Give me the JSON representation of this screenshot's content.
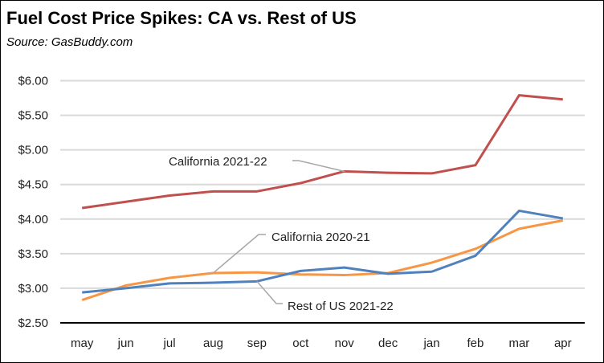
{
  "chart_data": {
    "type": "line",
    "title": "Fuel Cost Price Spikes:  CA vs. Rest of US",
    "subtitle": "Source:  GasBuddy.com",
    "xlabel": "",
    "ylabel": "",
    "categories": [
      "may",
      "jun",
      "jul",
      "aug",
      "sep",
      "oct",
      "nov",
      "dec",
      "jan",
      "feb",
      "mar",
      "apr"
    ],
    "ylim": [
      2.5,
      6.0
    ],
    "yticks": [
      2.5,
      3.0,
      3.5,
      4.0,
      4.5,
      5.0,
      5.5,
      6.0
    ],
    "ytick_labels": [
      "$2.50",
      "$3.00",
      "$3.50",
      "$4.00",
      "$4.50",
      "$5.00",
      "$5.50",
      "$6.00"
    ],
    "grid": true,
    "legend": "none (inline annotations)",
    "series": [
      {
        "name": "California 2021-22",
        "color": "#c0504d",
        "values": [
          4.16,
          4.25,
          4.34,
          4.4,
          4.4,
          4.52,
          4.69,
          4.67,
          4.66,
          4.78,
          5.79,
          5.73
        ]
      },
      {
        "name": "Rest of US 2021-22",
        "color": "#4f81bd",
        "values": [
          2.94,
          3.0,
          3.07,
          3.08,
          3.1,
          3.25,
          3.3,
          3.21,
          3.24,
          3.47,
          4.12,
          4.01
        ]
      },
      {
        "name": "California 2020-21",
        "color": "#f79646",
        "values": [
          2.83,
          3.04,
          3.15,
          3.22,
          3.23,
          3.2,
          3.19,
          3.22,
          3.37,
          3.57,
          3.86,
          3.98
        ]
      }
    ],
    "annotations": [
      {
        "text": "California 2021-22",
        "series": "California 2021-22",
        "point": "nov"
      },
      {
        "text": "California 2020-21",
        "series": "California 2020-21",
        "point": "aug"
      },
      {
        "text": "Rest of US 2021-22",
        "series": "Rest of US 2021-22",
        "point": "sep"
      }
    ]
  }
}
